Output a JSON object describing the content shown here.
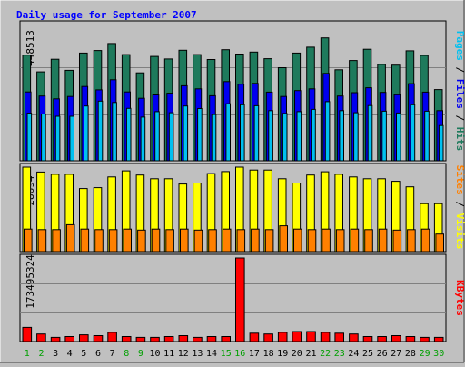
{
  "chart_data": [
    {
      "type": "bar",
      "title": "Daily usage for September 2007",
      "categories": [
        "1",
        "2",
        "3",
        "4",
        "5",
        "6",
        "7",
        "8",
        "9",
        "10",
        "11",
        "12",
        "13",
        "14",
        "15",
        "16",
        "17",
        "18",
        "19",
        "20",
        "21",
        "22",
        "23",
        "24",
        "25",
        "26",
        "27",
        "28",
        "29",
        "30"
      ],
      "weekend_categories": [
        "1",
        "2",
        "8",
        "9",
        "15",
        "16",
        "22",
        "23",
        "29",
        "30"
      ],
      "y_tick_label": "448513",
      "ylim": [
        0,
        530000
      ],
      "right_label_parts": [
        "Pages",
        "Files",
        "Hits"
      ],
      "series": [
        {
          "name": "Hits",
          "color": "#1e7a5c",
          "values": [
            411000,
            346000,
            395000,
            352000,
            419000,
            429000,
            456000,
            413000,
            342000,
            406000,
            396000,
            430000,
            413000,
            394000,
            432000,
            415000,
            423000,
            397000,
            362000,
            419000,
            442000,
            478000,
            354000,
            390000,
            434000,
            375000,
            372000,
            428000,
            410000,
            277000
          ]
        },
        {
          "name": "Files",
          "color": "#0000f0",
          "values": [
            268000,
            252000,
            241000,
            250000,
            289000,
            276000,
            315000,
            268000,
            243000,
            256000,
            263000,
            292000,
            280000,
            253000,
            308000,
            298000,
            301000,
            267000,
            250000,
            273000,
            280000,
            340000,
            252000,
            265000,
            284000,
            266000,
            257000,
            300000,
            267000,
            195000
          ]
        },
        {
          "name": "Pages",
          "color": "#00c0f0",
          "values": [
            185000,
            182000,
            173000,
            173000,
            213000,
            232000,
            227000,
            204000,
            170000,
            191000,
            187000,
            213000,
            203000,
            180000,
            222000,
            218000,
            214000,
            195000,
            184000,
            191000,
            200000,
            230000,
            195000,
            187000,
            215000,
            193000,
            186000,
            218000,
            193000,
            137000
          ]
        }
      ]
    },
    {
      "type": "bar",
      "categories": [
        "1",
        "2",
        "3",
        "4",
        "5",
        "6",
        "7",
        "8",
        "9",
        "10",
        "11",
        "12",
        "13",
        "14",
        "15",
        "16",
        "17",
        "18",
        "19",
        "20",
        "21",
        "22",
        "23",
        "24",
        "25",
        "26",
        "27",
        "28",
        "29",
        "30"
      ],
      "y_tick_label": "28694",
      "ylim": [
        0,
        28694
      ],
      "right_label_parts": [
        "Sites",
        "Visits"
      ],
      "series": [
        {
          "name": "Visits",
          "color": "#ffff00",
          "values": [
            28694,
            27031,
            26257,
            26257,
            21417,
            21724,
            25366,
            27417,
            26006,
            24760,
            24760,
            22947,
            23280,
            26491,
            27186,
            28694,
            27721,
            27721,
            24760,
            23280,
            26006,
            27117,
            26257,
            25366,
            24760,
            24760,
            23880,
            22007,
            16277,
            16277
          ]
        },
        {
          "name": "Sites",
          "color": "#ff8000",
          "values": [
            7650,
            7480,
            7480,
            9124,
            7650,
            7480,
            7480,
            7650,
            7310,
            7650,
            7480,
            7650,
            7310,
            7480,
            7650,
            7480,
            7650,
            7480,
            8770,
            7650,
            7480,
            7650,
            7480,
            7650,
            7480,
            7650,
            7310,
            7480,
            7650,
            5950
          ]
        }
      ]
    },
    {
      "type": "bar",
      "categories": [
        "1",
        "2",
        "3",
        "4",
        "5",
        "6",
        "7",
        "8",
        "9",
        "10",
        "11",
        "12",
        "13",
        "14",
        "15",
        "16",
        "17",
        "18",
        "19",
        "20",
        "21",
        "22",
        "23",
        "24",
        "25",
        "26",
        "27",
        "28",
        "29",
        "30"
      ],
      "y_tick_label": "173495324",
      "ylim": [
        0,
        173495324
      ],
      "right_label_parts": [
        "KBytes"
      ],
      "series": [
        {
          "name": "KBytes",
          "color": "#ff0000",
          "values": [
            29500000,
            15600000,
            8700000,
            10400000,
            13900000,
            12200000,
            19100000,
            10400000,
            8700000,
            8700000,
            10400000,
            12200000,
            8700000,
            10400000,
            10400000,
            173500000,
            17400000,
            15600000,
            19100000,
            20800000,
            20800000,
            19100000,
            17400000,
            15600000,
            10400000,
            10400000,
            12200000,
            10400000,
            8700000,
            8700000
          ]
        }
      ]
    }
  ],
  "colors": {
    "background": "#c0c0c0",
    "plot_background": "#c0c0c0",
    "frame": "#000000",
    "title": "#0000ff",
    "tick_text": "#000000",
    "weekday_label": "#000000",
    "weekend_label": "#00a000",
    "gridline": "#808080"
  }
}
